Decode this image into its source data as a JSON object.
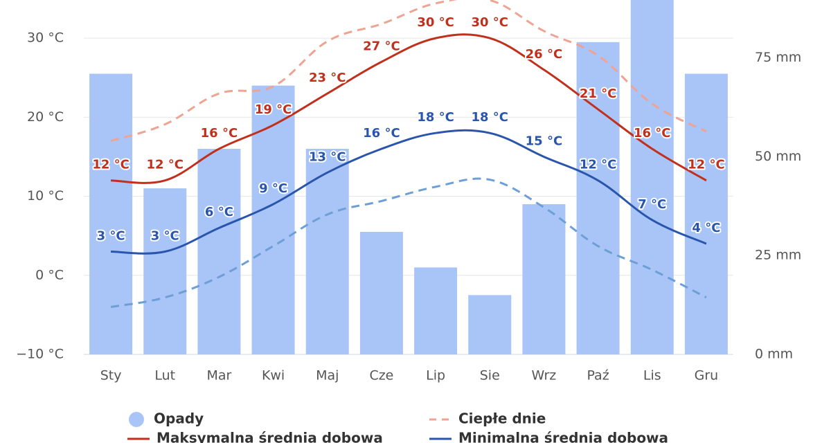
{
  "chart_data": {
    "type": "combo",
    "categories": [
      "Sty",
      "Lut",
      "Mar",
      "Kwi",
      "Maj",
      "Cze",
      "Lip",
      "Sie",
      "Wrz",
      "Paź",
      "Lis",
      "Gru"
    ],
    "ylim": [
      -10,
      35
    ],
    "yticks": [
      {
        "value": -10,
        "label": "−10 °C"
      },
      {
        "value": 0,
        "label": "0 °C"
      },
      {
        "value": 10,
        "label": "10 °C"
      },
      {
        "value": 20,
        "label": "20 °C"
      },
      {
        "value": 30,
        "label": "30 °C"
      }
    ],
    "y2lim": [
      0,
      90
    ],
    "y2ticks": [
      {
        "value": 0,
        "label": "0 mm"
      },
      {
        "value": 25,
        "label": "25 mm"
      },
      {
        "value": 50,
        "label": "50 mm"
      },
      {
        "value": 75,
        "label": "75 mm"
      }
    ],
    "grid": true,
    "series": [
      {
        "name": "Opady",
        "type": "bar",
        "axis": "y2",
        "color": "#a9c5f7",
        "values": [
          71,
          42,
          52,
          68,
          52,
          31,
          22,
          15,
          38,
          79,
          90,
          71
        ]
      },
      {
        "name": "Ciepłe dnie",
        "type": "line",
        "dashed": true,
        "color": "#eea393",
        "values": [
          17,
          19.1,
          23,
          23.9,
          29.6,
          31.8,
          34.4,
          34.8,
          30.9,
          27.8,
          21.7,
          18.2
        ]
      },
      {
        "name": "Maksymalna średnia dobowa",
        "type": "line",
        "color": "#c0301c",
        "values": [
          12,
          12,
          16,
          19,
          23,
          27,
          30,
          30,
          26,
          21,
          16,
          12
        ],
        "value_labels": [
          "12 °C",
          "12 °C",
          "16 °C",
          "19 °C",
          "23 °C",
          "27 °C",
          "30 °C",
          "30 °C",
          "26 °C",
          "21 °C",
          "16 °C",
          "12 °C"
        ]
      },
      {
        "type": "line",
        "dashed": true,
        "color": "#6d9fd6",
        "values": [
          -4,
          -2.8,
          -0.2,
          3.7,
          7.7,
          9.4,
          11.2,
          12.1,
          8.6,
          3.7,
          0.7,
          -2.8
        ]
      },
      {
        "name": "Minimalna średnia dobowa",
        "type": "line",
        "color": "#2a55ad",
        "values": [
          3,
          3,
          6,
          9,
          13,
          16,
          18,
          18,
          15,
          12,
          7,
          4
        ],
        "value_labels": [
          "3 °C",
          "3 °C",
          "6 °C",
          "9 °C",
          "13 °C",
          "16 °C",
          "18 °C",
          "18 °C",
          "15 °C",
          "12 °C",
          "7 °C",
          "4 °C"
        ]
      }
    ]
  }
}
